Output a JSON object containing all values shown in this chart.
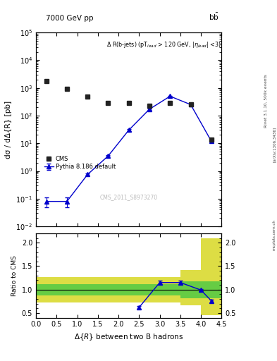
{
  "title_left": "7000 GeV pp",
  "title_right": "b$\\bar{b}$",
  "cms_label": "CMS_2011_S8973270",
  "xlabel": "Δ{R} between two B hadrons",
  "ylabel_main": "dσ / dΔ{R} [pb]",
  "ylabel_ratio": "Ratio to CMS",
  "cms_x": [
    0.25,
    0.75,
    1.25,
    1.75,
    2.25,
    2.75,
    3.25,
    3.75,
    4.25
  ],
  "cms_y": [
    1800,
    900,
    480,
    290,
    280,
    220,
    280,
    260,
    14
  ],
  "py_x": [
    0.25,
    0.75,
    1.25,
    1.75,
    2.25,
    2.75,
    3.25,
    3.75,
    4.25
  ],
  "py_y": [
    0.08,
    0.08,
    0.75,
    3.5,
    30,
    170,
    500,
    250,
    12
  ],
  "py_yerr": [
    0.03,
    0.03,
    0.05,
    0.15,
    2,
    9,
    22,
    12,
    0.6
  ],
  "ratio_x": [
    2.5,
    3.0,
    3.5,
    4.0,
    4.25
  ],
  "ratio_y": [
    0.62,
    1.15,
    1.15,
    0.99,
    0.76
  ],
  "ratio_yerr": [
    0.03,
    0.04,
    0.04,
    0.025,
    0.03
  ],
  "bx_edges": [
    0.0,
    0.5,
    1.0,
    1.5,
    2.0,
    2.5,
    3.0,
    3.5,
    4.0,
    4.5
  ],
  "green_lo": [
    0.88,
    0.88,
    0.88,
    0.88,
    0.88,
    0.88,
    0.88,
    0.82,
    0.82,
    0.82
  ],
  "green_hi": [
    1.12,
    1.12,
    1.12,
    1.12,
    1.12,
    1.12,
    1.12,
    1.18,
    1.18,
    1.18
  ],
  "yellow_lo": [
    0.73,
    0.73,
    0.73,
    0.73,
    0.73,
    0.73,
    0.73,
    0.67,
    0.45,
    0.45
  ],
  "yellow_hi": [
    1.27,
    1.27,
    1.27,
    1.27,
    1.27,
    1.27,
    1.27,
    1.42,
    2.1,
    2.1
  ],
  "xlim": [
    0,
    4.5
  ],
  "ylim_main": [
    0.01,
    100000.0
  ],
  "ylim_ratio": [
    0.4,
    2.2
  ],
  "color_cms": "#222222",
  "color_py": "#0000cc",
  "color_green": "#66cc44",
  "color_yellow": "#dddd44",
  "background": "#ffffff"
}
